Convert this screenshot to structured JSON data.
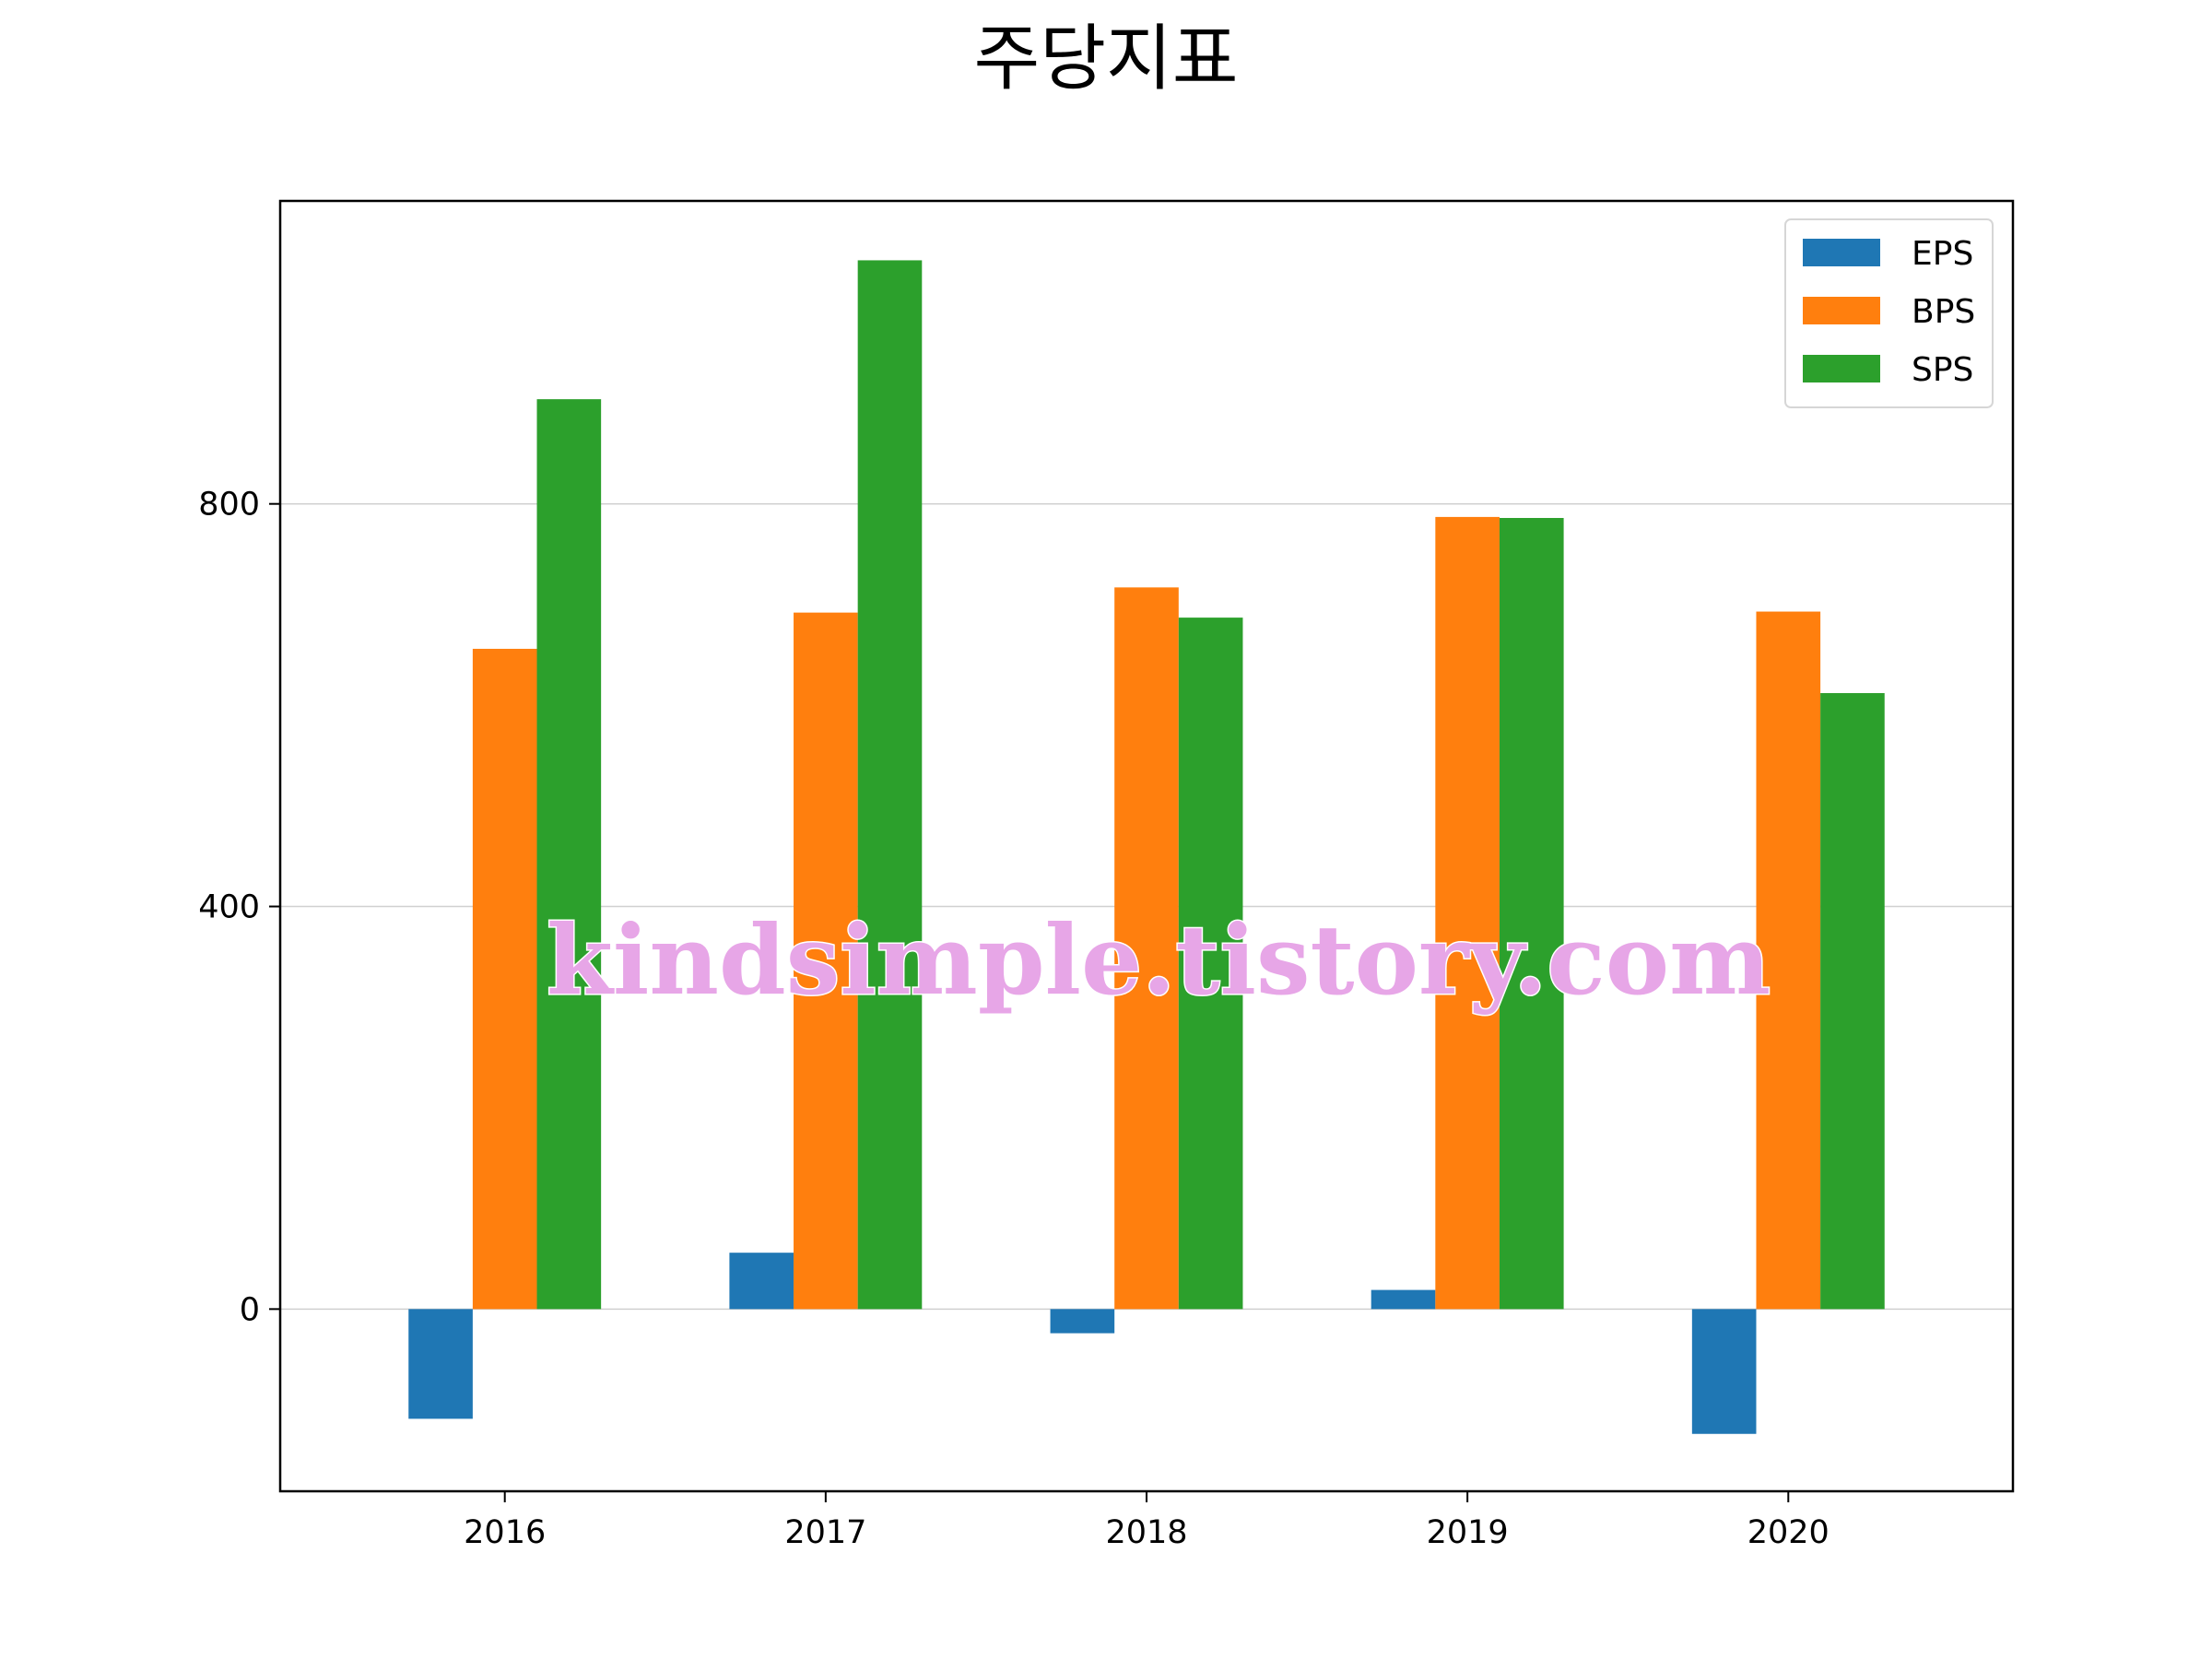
{
  "chart_data": {
    "type": "bar",
    "title": "주당지표",
    "categories": [
      "2016",
      "2017",
      "2018",
      "2019",
      "2020"
    ],
    "series": [
      {
        "name": "EPS",
        "color": "#1f77b4",
        "values": [
          -109,
          56,
          -24,
          19,
          -124
        ]
      },
      {
        "name": "BPS",
        "color": "#ff7f0e",
        "values": [
          656,
          692,
          717,
          787,
          693
        ]
      },
      {
        "name": "SPS",
        "color": "#2ca02c",
        "values": [
          904,
          1042,
          687,
          786,
          612
        ]
      }
    ],
    "yticks": [
      0,
      400,
      800
    ],
    "ylim": [
      -181,
      1101
    ],
    "xlabel": "",
    "ylabel": "",
    "grid": "y",
    "legend_position": "top-right"
  },
  "watermark": "kindsimple.tistory.com"
}
